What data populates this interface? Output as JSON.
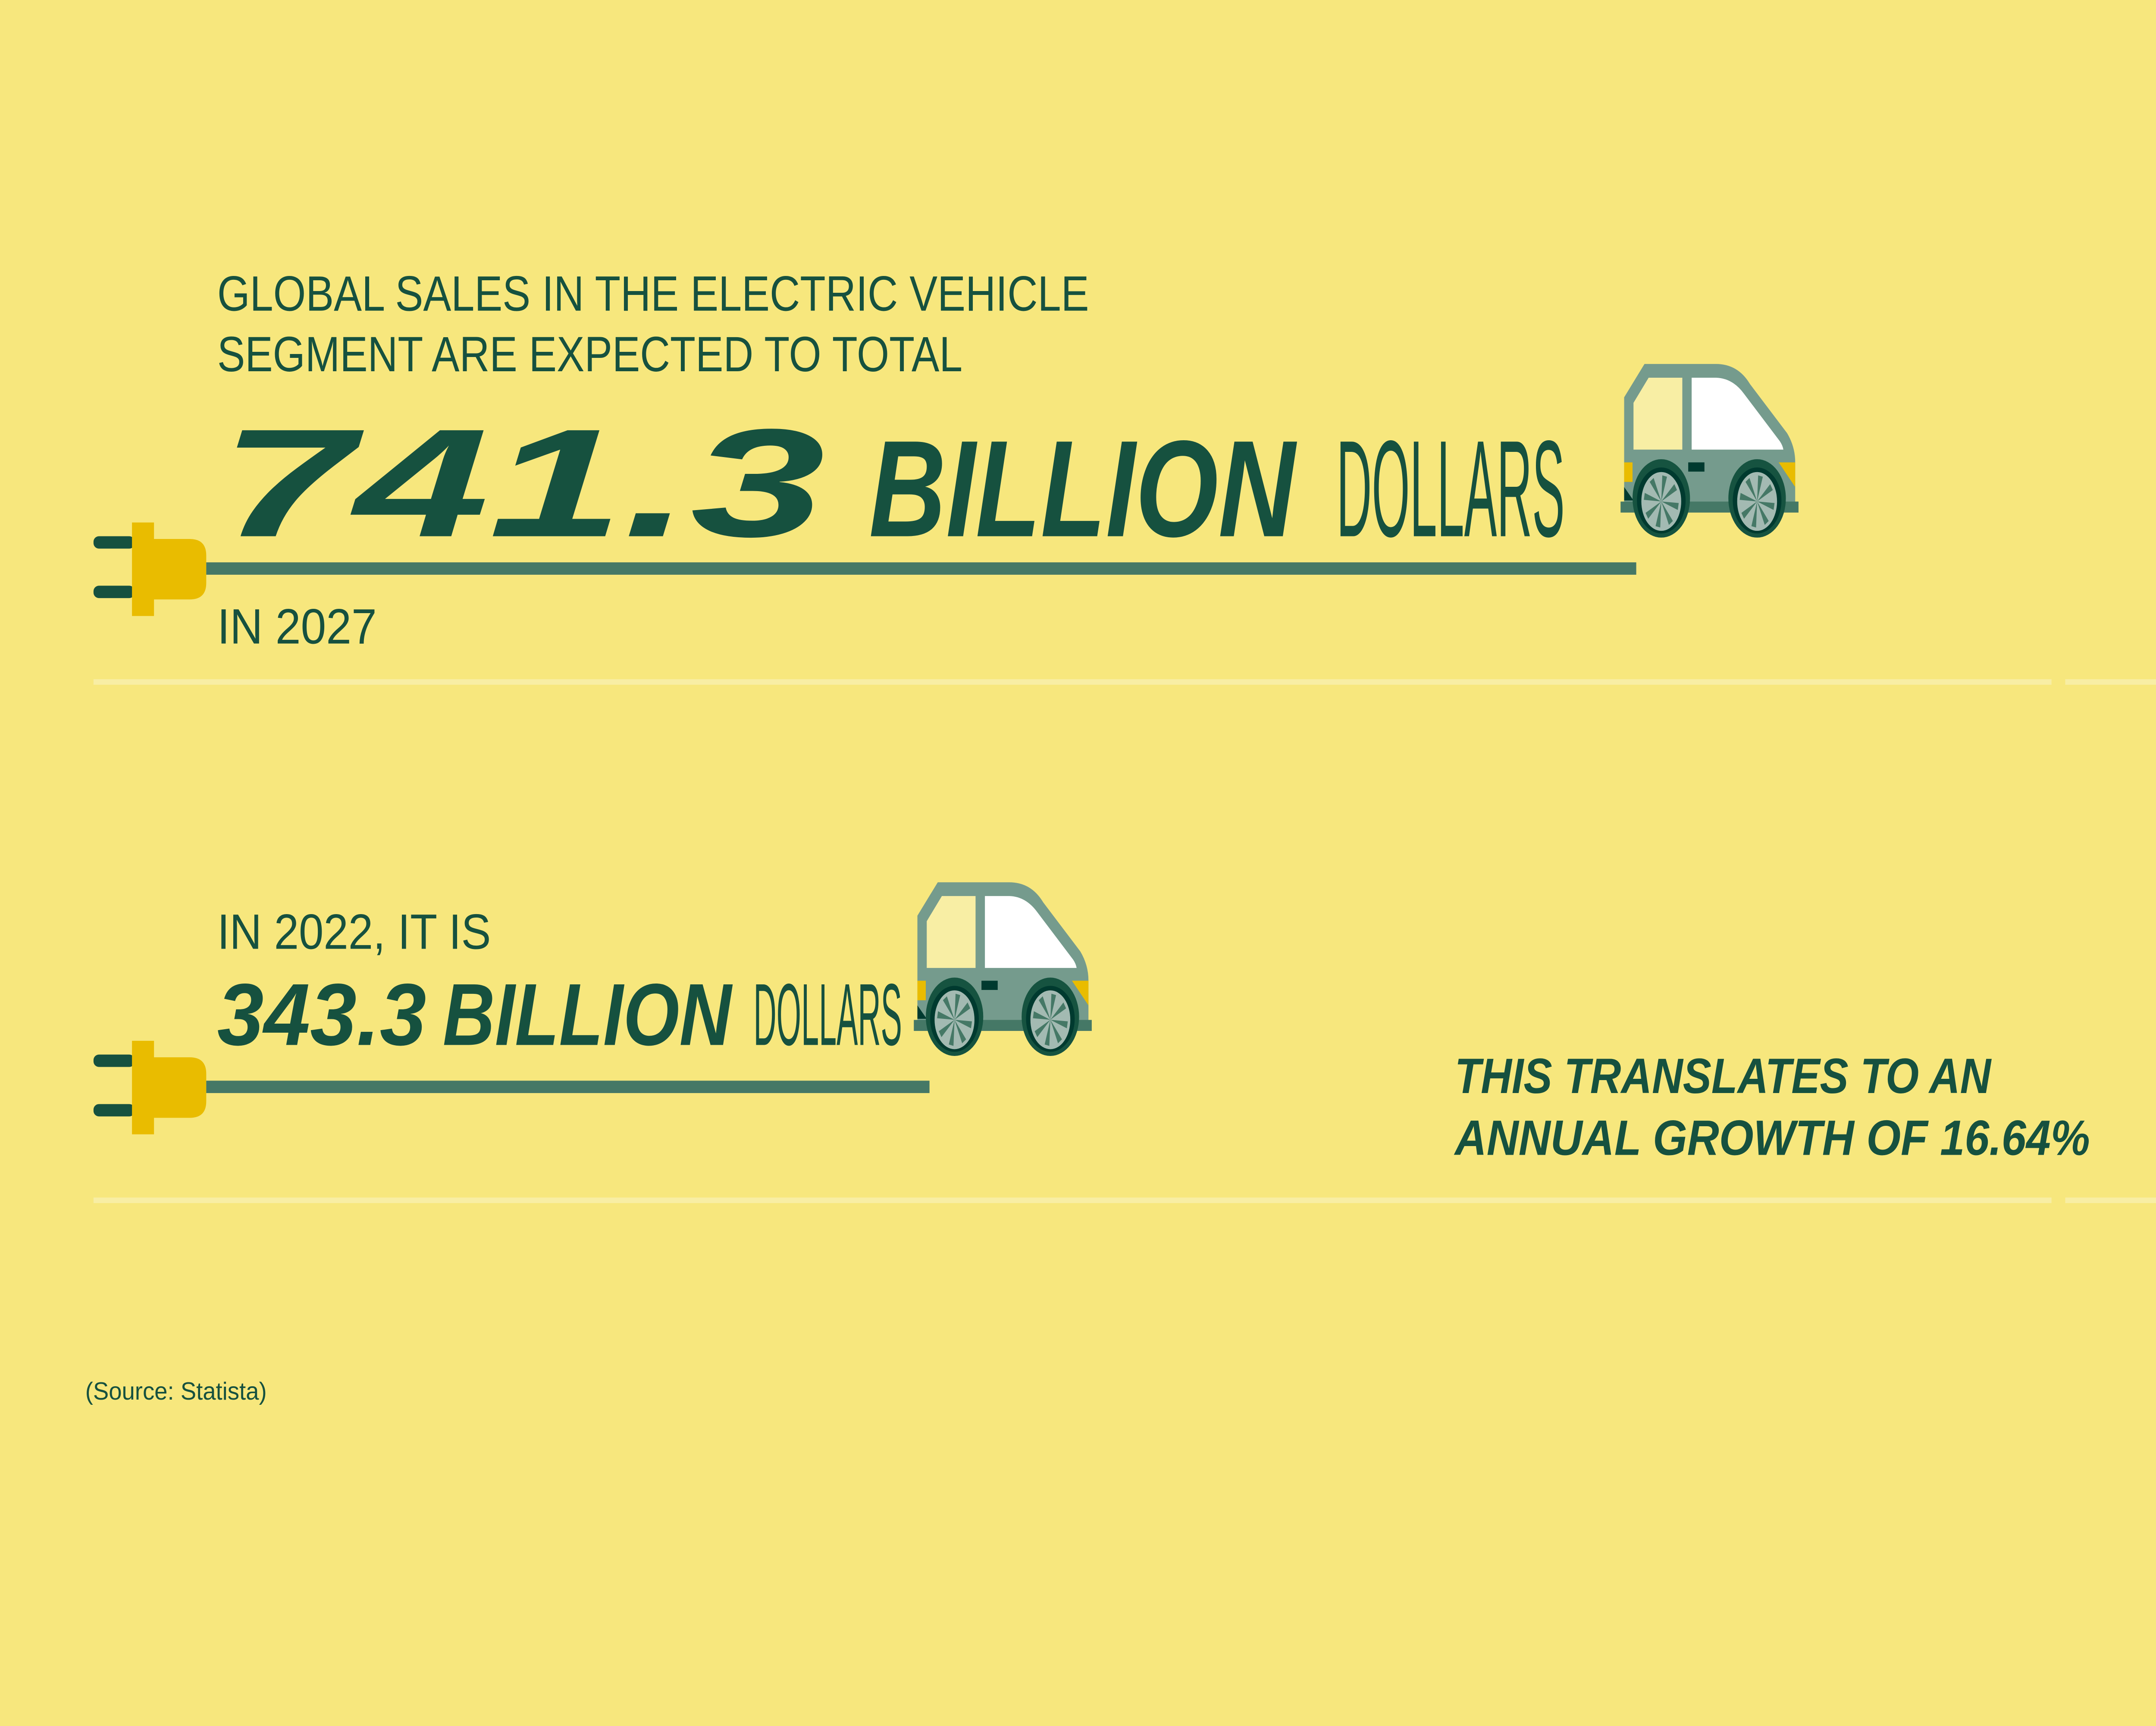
{
  "colors": {
    "background": "#f7e77d",
    "text": "#16513f",
    "car_body": "#759b8d",
    "car_dark": "#003a2f",
    "car_trim": "#457866",
    "wheel_ring": "#165340",
    "hub": "#a3bab2",
    "window_front": "#f8eea4",
    "window_rear": "#ffffff",
    "accent_yellow": "#e9bc00",
    "road_line": "#f8eea4"
  },
  "top_section": {
    "intro_line1": "GLOBAL SALES IN THE ELECTRIC VEHICLE",
    "intro_line2": "SEGMENT ARE EXPECTED TO TOTAL",
    "amount": "741.3",
    "unit_bold": "BILLION",
    "unit_light": "DOLLARS",
    "year": "IN 2027",
    "icons": [
      "plug-icon",
      "electric-car-icon"
    ]
  },
  "bottom_section": {
    "intro": "IN 2022, IT IS",
    "amount": "343.3",
    "unit_bold": "BILLION",
    "unit_light": "DOLLARS",
    "growth_line1": "THIS TRANSLATES TO AN",
    "growth_line2": "ANNUAL GROWTH OF 16.64%",
    "icons": [
      "plug-icon",
      "electric-car-icon"
    ]
  },
  "source": "(Source: Statista)"
}
